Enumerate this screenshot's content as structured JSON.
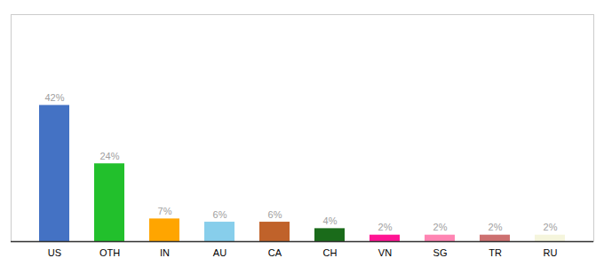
{
  "chart_data": {
    "type": "bar",
    "categories": [
      "US",
      "OTH",
      "IN",
      "AU",
      "CA",
      "CH",
      "VN",
      "SG",
      "TR",
      "RU"
    ],
    "values": [
      42,
      24,
      7,
      6,
      6,
      4,
      2,
      2,
      2,
      2
    ],
    "value_labels": [
      "42%",
      "24%",
      "7%",
      "6%",
      "6%",
      "4%",
      "2%",
      "2%",
      "2%",
      "2%"
    ],
    "colors": [
      "#4472C4",
      "#22C02C",
      "#FFA500",
      "#87CEEB",
      "#C0622A",
      "#1A6B1A",
      "#FF1493",
      "#FF85B3",
      "#CD7070",
      "#F5F5DC"
    ],
    "ylim": [
      0,
      70
    ],
    "data_labels": true,
    "tick_labels": "x",
    "grid": false
  }
}
